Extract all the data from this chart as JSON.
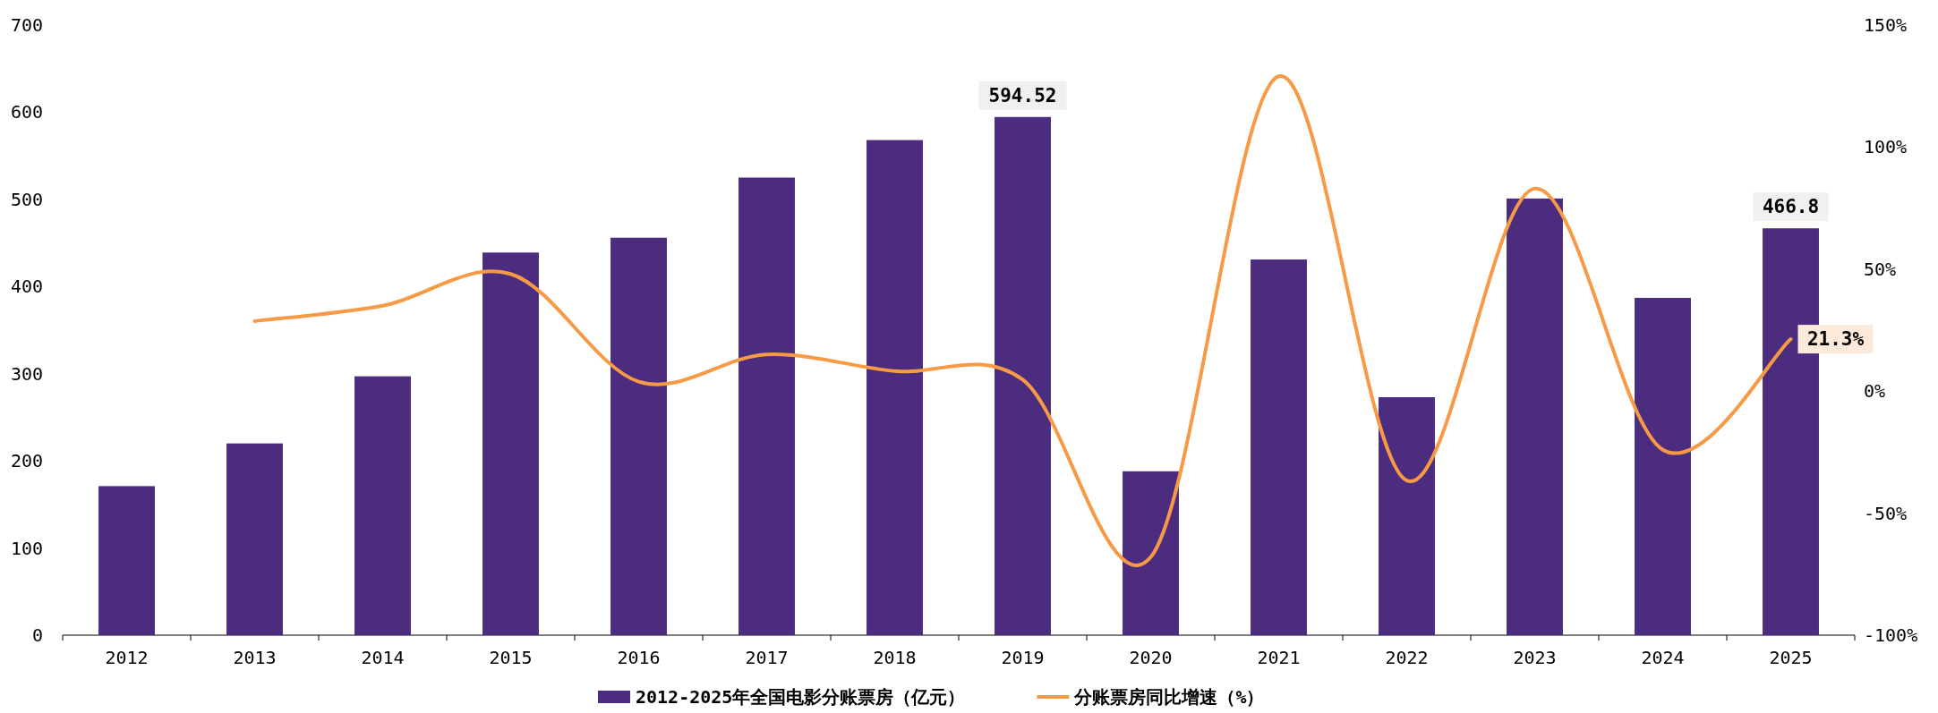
{
  "chart_data": {
    "type": "bar",
    "categories": [
      "2012",
      "2013",
      "2014",
      "2015",
      "2016",
      "2017",
      "2018",
      "2019",
      "2020",
      "2021",
      "2022",
      "2023",
      "2024",
      "2025"
    ],
    "series": [
      {
        "name": "2012-2025年全国电影分账票房（亿元）",
        "color": "#4b2c7f",
        "values": [
          171,
          220,
          297,
          439,
          456,
          525,
          568,
          594.52,
          188,
          431,
          273,
          501,
          387,
          466.8
        ],
        "value_labels": [
          null,
          null,
          null,
          null,
          null,
          null,
          null,
          "594.52",
          null,
          null,
          null,
          null,
          null,
          "466.8"
        ]
      },
      {
        "name": "分账票房同比增速（%）",
        "type": "line",
        "axis": "y2",
        "color": "#f79a46",
        "values": [
          null,
          28.7,
          35,
          48,
          3.9,
          15,
          8.2,
          4.7,
          -68,
          129,
          -36.6,
          83,
          -24,
          21.3
        ],
        "value_labels": [
          null,
          null,
          null,
          null,
          null,
          null,
          null,
          null,
          null,
          null,
          null,
          null,
          null,
          "21.3%"
        ]
      }
    ],
    "ylim": [
      0,
      700
    ],
    "yticks": [
      0,
      100,
      200,
      300,
      400,
      500,
      600,
      700
    ],
    "y2lim": [
      -100,
      150
    ],
    "y2ticks": [
      {
        "value": -100,
        "label": "-100%"
      },
      {
        "value": -50,
        "label": "-50%"
      },
      {
        "value": 0,
        "label": "0%"
      },
      {
        "value": 50,
        "label": "50%"
      },
      {
        "value": 100,
        "label": "100%"
      },
      {
        "value": 150,
        "label": "150%"
      }
    ],
    "legend": "bottom"
  }
}
